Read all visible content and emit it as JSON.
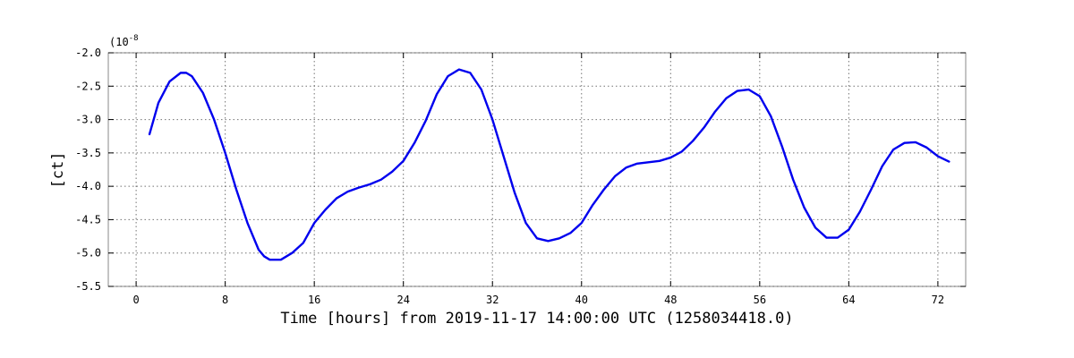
{
  "chart_data": {
    "type": "line",
    "title": "",
    "xlabel": "Time [hours] from 2019-11-17 14:00:00 UTC (1258034418.0)",
    "ylabel": "[ct]",
    "y_multiplier_label": "(10",
    "y_multiplier_exponent": "-8",
    "xlim": [
      -2.5,
      74.5
    ],
    "ylim": [
      -5.5,
      -2.0
    ],
    "x_ticks": [
      0,
      8,
      16,
      24,
      32,
      40,
      48,
      56,
      64,
      72
    ],
    "x_tick_labels": [
      "0",
      "8",
      "16",
      "24",
      "32",
      "40",
      "48",
      "56",
      "64",
      "72"
    ],
    "y_ticks": [
      -2.0,
      -2.5,
      -3.0,
      -3.5,
      -4.0,
      -4.5,
      -5.0,
      -5.5
    ],
    "y_tick_labels": [
      "-2.0",
      "-2.5",
      "-3.0",
      "-3.5",
      "-4.0",
      "-4.5",
      "-5.0",
      "-5.5"
    ],
    "grid": true,
    "series": [
      {
        "color": "#0000ee",
        "x": [
          1.2,
          2,
          3,
          4,
          4.5,
          5,
          6,
          7,
          8,
          9,
          10,
          11,
          11.5,
          12,
          12.5,
          13,
          13.5,
          14,
          15,
          16,
          17,
          18,
          19,
          20,
          21,
          22,
          23,
          24,
          25,
          26,
          27,
          28,
          29,
          30,
          31,
          32,
          33,
          34,
          35,
          36,
          37,
          38,
          39,
          40,
          41,
          42,
          43,
          44,
          45,
          46,
          47,
          48,
          49,
          50,
          51,
          52,
          53,
          54,
          55,
          56,
          57,
          58,
          59,
          60,
          61,
          62,
          63,
          64,
          65,
          66,
          67,
          68,
          69,
          70,
          71,
          72,
          73
        ],
        "y": [
          -3.22,
          -2.75,
          -2.43,
          -2.3,
          -2.3,
          -2.35,
          -2.6,
          -3.0,
          -3.5,
          -4.05,
          -4.55,
          -4.95,
          -5.05,
          -5.1,
          -5.1,
          -5.1,
          -5.05,
          -5.0,
          -4.85,
          -4.55,
          -4.35,
          -4.18,
          -4.08,
          -4.02,
          -3.97,
          -3.9,
          -3.78,
          -3.62,
          -3.35,
          -3.02,
          -2.62,
          -2.35,
          -2.25,
          -2.3,
          -2.55,
          -3.0,
          -3.55,
          -4.1,
          -4.55,
          -4.78,
          -4.82,
          -4.78,
          -4.7,
          -4.55,
          -4.28,
          -4.05,
          -3.85,
          -3.72,
          -3.66,
          -3.64,
          -3.62,
          -3.57,
          -3.48,
          -3.32,
          -3.12,
          -2.88,
          -2.68,
          -2.57,
          -2.55,
          -2.65,
          -2.95,
          -3.4,
          -3.9,
          -4.32,
          -4.62,
          -4.77,
          -4.77,
          -4.65,
          -4.38,
          -4.05,
          -3.7,
          -3.45,
          -3.35,
          -3.34,
          -3.42,
          -3.55,
          -3.63
        ]
      }
    ]
  }
}
